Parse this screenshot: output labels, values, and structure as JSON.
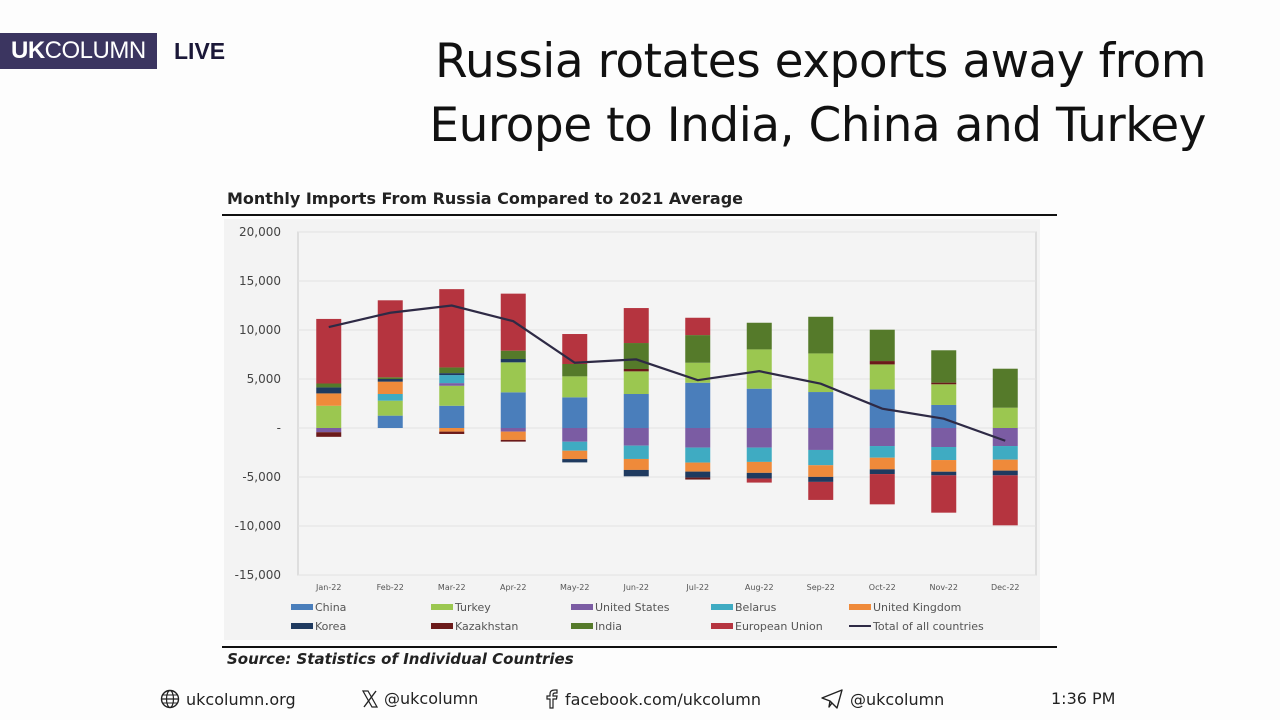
{
  "brand": {
    "logo_bold": "UK",
    "logo_rest": "COLUMN",
    "live": "LIVE"
  },
  "headline": {
    "line1": "Russia rotates exports away from",
    "line2": "Europe to India, China and Turkey"
  },
  "source": "Source: Statistics of Individual Countries",
  "footer": {
    "website": "ukcolumn.org",
    "x": "@ukcolumn",
    "facebook": "facebook.com/ukcolumn",
    "telegram": "@ukcolumn",
    "time": "1:36 PM",
    "icons": [
      "globe-icon",
      "x-icon",
      "facebook-icon",
      "telegram-icon"
    ]
  },
  "chart_data": {
    "type": "bar",
    "stacked": true,
    "title": "Monthly Imports From  Russia Compared to 2021 Average",
    "xlabel": "",
    "ylabel": "",
    "ylim": [
      -15000,
      20000
    ],
    "yticks": [
      20000,
      15000,
      10000,
      5000,
      0,
      -5000,
      -10000,
      -15000
    ],
    "ytick_labels": [
      "20,000",
      "15,000",
      "10,000",
      "5,000",
      "-",
      "-5,000",
      "-10,000",
      "-15,000"
    ],
    "grid": true,
    "legend": "bottom",
    "categories": [
      "Jan-22",
      "Feb-22",
      "Mar-22",
      "Apr-22",
      "May-22",
      "Jun-22",
      "Jul-22",
      "Aug-22",
      "Sep-22",
      "Oct-22",
      "Nov-22",
      "Dec-22"
    ],
    "series": [
      {
        "name": "China",
        "color": "#4a7ebb",
        "values": [
          0,
          1260,
          2270,
          3640,
          3130,
          3470,
          4620,
          4010,
          3670,
          3940,
          2350,
          0
        ]
      },
      {
        "name": "Turkey",
        "color": "#9bc750",
        "values": [
          2270,
          1530,
          2040,
          3060,
          2140,
          2310,
          2040,
          4010,
          3940,
          2550,
          2110,
          2070
        ]
      },
      {
        "name": "United States",
        "color": "#7b5ca3",
        "values": [
          -430,
          0,
          270,
          -370,
          -1400,
          -1800,
          -2000,
          -2000,
          -2240,
          -1840,
          -1940,
          -1840
        ]
      },
      {
        "name": "Belarus",
        "color": "#3fabc2",
        "values": [
          0,
          680,
          820,
          0,
          -920,
          -1360,
          -1530,
          -1460,
          -1560,
          -1190,
          -1330,
          -1390
        ]
      },
      {
        "name": "United Kingdom",
        "color": "#ef8a3a",
        "values": [
          1260,
          1260,
          -370,
          -850,
          -850,
          -1120,
          -920,
          -1120,
          -1190,
          -1190,
          -1190,
          -1120
        ]
      },
      {
        "name": "Korea",
        "color": "#1f3a5f",
        "values": [
          610,
          270,
          200,
          340,
          -340,
          -650,
          -610,
          -580,
          -510,
          -480,
          -370,
          -480
        ]
      },
      {
        "name": "Kazakhstan",
        "color": "#6b1a1a",
        "values": [
          -470,
          0,
          -240,
          -170,
          0,
          240,
          -200,
          0,
          0,
          340,
          170,
          0
        ]
      },
      {
        "name": "India",
        "color": "#557a2a",
        "values": [
          400,
          170,
          580,
          850,
          1260,
          2650,
          2820,
          2720,
          3740,
          3200,
          3300,
          3980
        ]
      },
      {
        "name": "European Union",
        "color": "#b5343f",
        "values": [
          6590,
          7860,
          7990,
          5820,
          3060,
          3570,
          1770,
          -410,
          -1840,
          -3090,
          -3810,
          -5100
        ]
      }
    ],
    "line": {
      "name": "Total of all countries",
      "color": "#2e2a45",
      "values": [
        10300,
        11760,
        12500,
        10900,
        6660,
        7000,
        4880,
        5800,
        4520,
        1970,
        950,
        -1300
      ]
    }
  }
}
